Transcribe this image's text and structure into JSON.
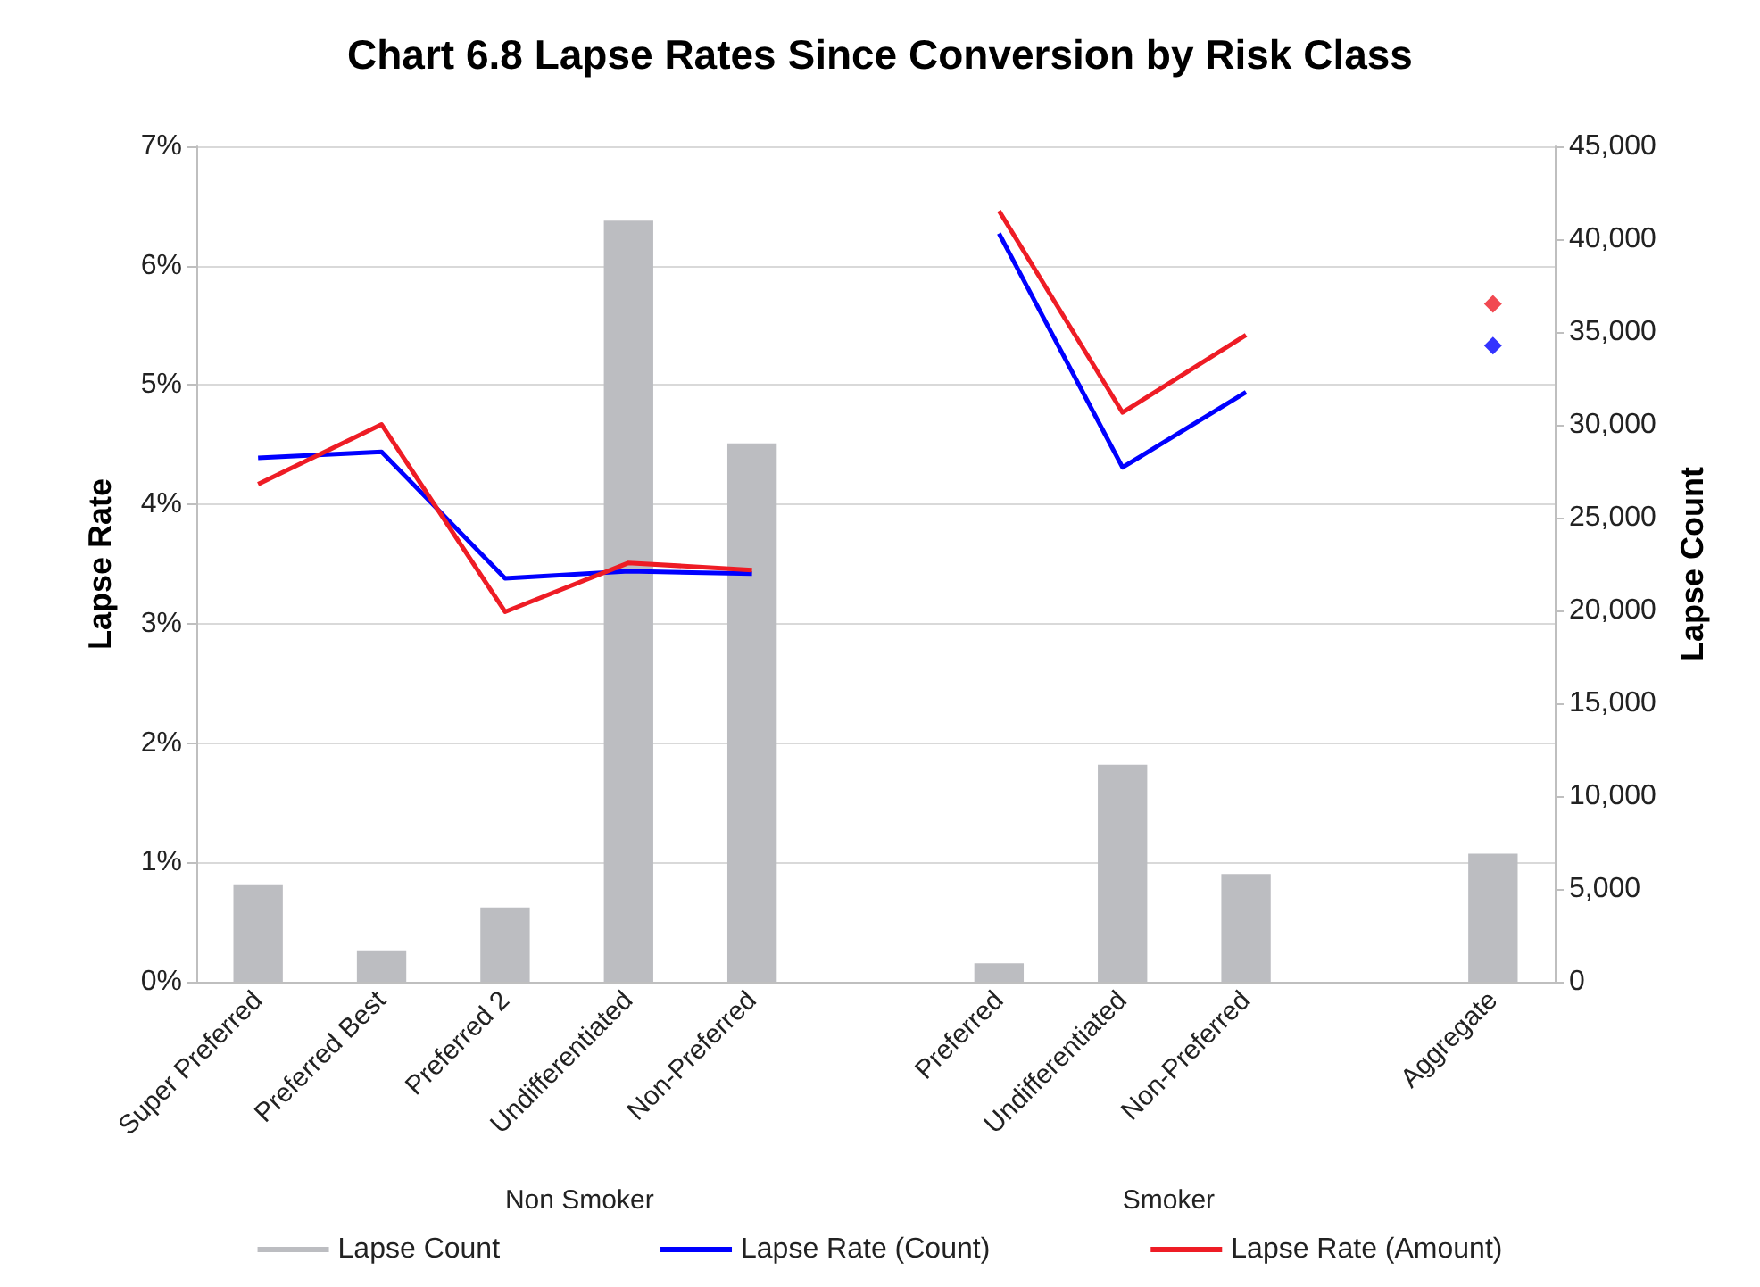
{
  "chart_data": {
    "type": "bar",
    "title": "Chart 6.8 Lapse Rates Since Conversion by Risk Class",
    "categories": [
      "Super Preferred",
      "Preferred Best",
      "Preferred 2",
      "Undifferentiated",
      "Non-Preferred",
      null,
      "Preferred",
      "Undifferentiated",
      "Non-Preferred",
      null,
      "Aggregate"
    ],
    "series": [
      {
        "name": "Lapse Count",
        "axis": "y2",
        "color": "#bcbdc1",
        "values": [
          5200,
          1700,
          4000,
          41000,
          29000,
          null,
          1000,
          11700,
          5800,
          null,
          6900
        ]
      },
      {
        "name": "Lapse Rate (Count)",
        "type": "line",
        "color": "#0000ff",
        "values": [
          4.39,
          4.44,
          3.38,
          3.44,
          3.42,
          null,
          6.27,
          4.31,
          4.94,
          null,
          null
        ]
      },
      {
        "name": "Lapse Rate (Amount)",
        "type": "line",
        "color": "#ee1c25",
        "values": [
          4.17,
          4.67,
          3.1,
          3.51,
          3.45,
          null,
          6.46,
          4.77,
          5.42,
          null,
          null
        ]
      },
      {
        "type": "scatter",
        "color": "#0000ff",
        "marker": "diamond",
        "x": [
          "Aggregate"
        ],
        "values": [
          5.33
        ]
      },
      {
        "type": "scatter",
        "color": "#ee1c25",
        "marker": "diamond",
        "x": [
          "Aggregate"
        ],
        "values": [
          5.68
        ]
      }
    ],
    "ylabel": "Lapse Rate",
    "y2label": "Lapse Count",
    "ylim": [
      0,
      7
    ],
    "yticks": [
      {
        "value": 0,
        "label": "0%"
      },
      {
        "value": 1,
        "label": "1%"
      },
      {
        "value": 2,
        "label": "2%"
      },
      {
        "value": 3,
        "label": "3%"
      },
      {
        "value": 4,
        "label": "4%"
      },
      {
        "value": 5,
        "label": "5%"
      },
      {
        "value": 6,
        "label": "6%"
      },
      {
        "value": 7,
        "label": "7%"
      }
    ],
    "y2lim": [
      0,
      45000
    ],
    "y2ticks": [
      0,
      {
        "value": 5000,
        "label": "5,000"
      },
      {
        "value": 10000,
        "label": "10,000"
      },
      {
        "value": 15000,
        "label": "15,000"
      },
      {
        "value": 20000,
        "label": "20,000"
      },
      {
        "value": 25000,
        "label": "25,000"
      },
      {
        "value": 30000,
        "label": "30,000"
      },
      {
        "value": 35000,
        "label": "35,000"
      },
      {
        "value": 40000,
        "label": "40,000"
      },
      {
        "value": 45000,
        "label": "45,000"
      }
    ],
    "annotations": [
      "Non Smoker",
      "Smoker"
    ],
    "grid": "y",
    "legend": "bottom"
  }
}
